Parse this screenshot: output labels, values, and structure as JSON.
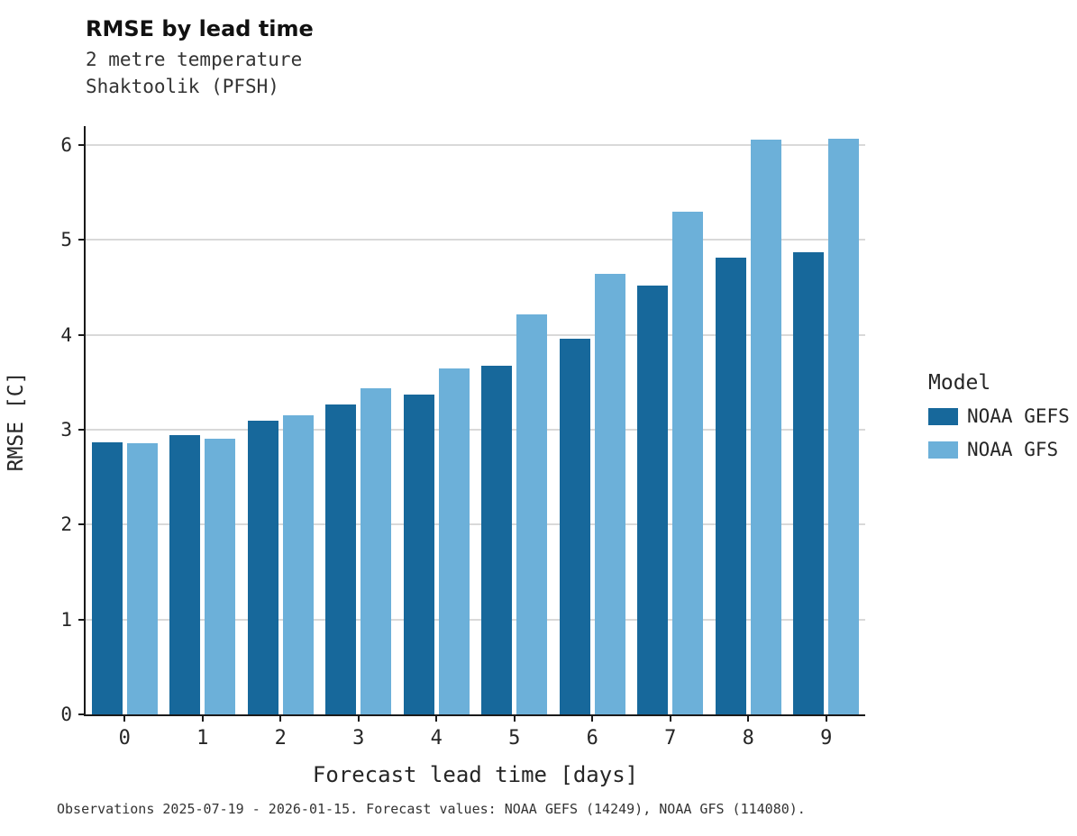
{
  "title": "RMSE by lead time",
  "subtitle_line1": "2 metre temperature",
  "subtitle_line2": "Shaktoolik (PFSH)",
  "caption": "Observations 2025-07-19 - 2026-01-15. Forecast values: NOAA GEFS (14249), NOAA GFS (114080).",
  "legend": {
    "title": "Model",
    "items": [
      {
        "label": "NOAA GEFS",
        "color": "#17689b"
      },
      {
        "label": "NOAA GFS",
        "color": "#6cb0d9"
      }
    ]
  },
  "chart_data": {
    "type": "bar",
    "title": "RMSE by lead time",
    "subtitle": "2 metre temperature, Shaktoolik (PFSH)",
    "categories": [
      "0",
      "1",
      "2",
      "3",
      "4",
      "5",
      "6",
      "7",
      "8",
      "9"
    ],
    "series": [
      {
        "name": "NOAA GEFS",
        "color": "#17689b",
        "values": [
          2.87,
          2.94,
          3.1,
          3.27,
          3.37,
          3.67,
          3.96,
          4.52,
          4.81,
          4.87
        ]
      },
      {
        "name": "NOAA GFS",
        "color": "#6cb0d9",
        "values": [
          2.86,
          2.91,
          3.15,
          3.44,
          3.65,
          4.22,
          4.64,
          5.3,
          6.06,
          6.07
        ]
      }
    ],
    "xlabel": "Forecast lead time [days]",
    "ylabel": "RMSE [C]",
    "ylim": [
      0,
      6.2
    ],
    "yticks": [
      0,
      1,
      2,
      3,
      4,
      5,
      6
    ],
    "grid": true,
    "legend_position": "right",
    "legend_title": "Model"
  }
}
